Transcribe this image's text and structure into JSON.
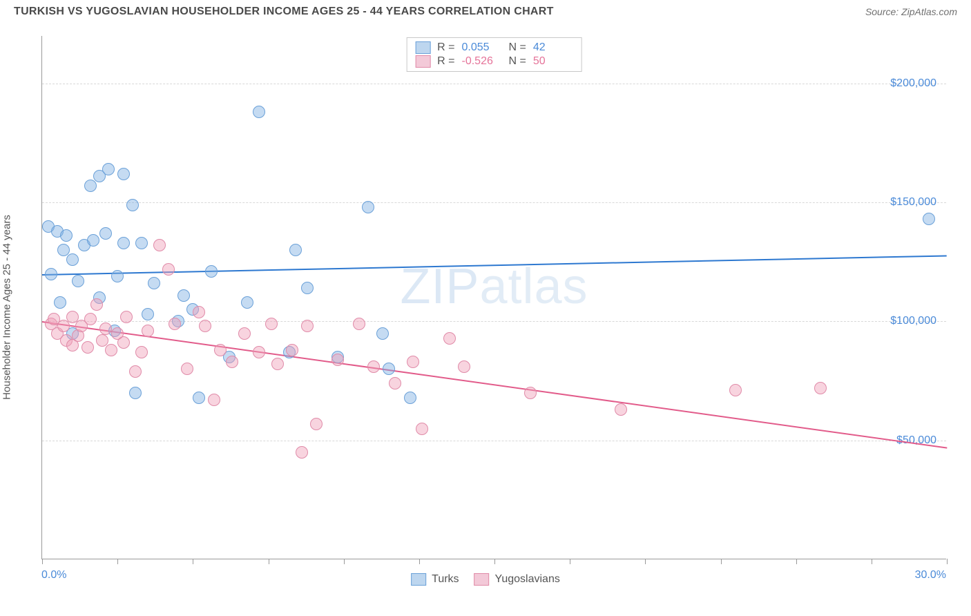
{
  "title": "TURKISH VS YUGOSLAVIAN HOUSEHOLDER INCOME AGES 25 - 44 YEARS CORRELATION CHART",
  "source": "Source: ZipAtlas.com",
  "watermark": "ZIPatlas",
  "y_axis_label": "Householder Income Ages 25 - 44 years",
  "chart": {
    "type": "scatter",
    "xlim": [
      0,
      30
    ],
    "ylim": [
      0,
      220000
    ],
    "x_ticks": [
      0,
      2.5,
      5,
      7.5,
      10,
      12.5,
      15,
      17.5,
      20,
      22.5,
      25,
      27.5,
      30
    ],
    "x_start_label": "0.0%",
    "x_end_label": "30.0%",
    "y_gridlines": [
      {
        "value": 50000,
        "label": "$50,000"
      },
      {
        "value": 100000,
        "label": "$100,000"
      },
      {
        "value": 150000,
        "label": "$150,000"
      },
      {
        "value": 200000,
        "label": "$200,000"
      }
    ],
    "background_color": "#ffffff",
    "grid_color": "#d8d8d8",
    "axis_color": "#999999",
    "tick_label_color": "#4a8ad8",
    "marker_radius": 9,
    "marker_stroke_width": 1.2,
    "series": [
      {
        "name": "Turks",
        "fill_color": "rgba(127,175,226,0.45)",
        "stroke_color": "#6aa0d8",
        "legend_fill": "#bdd6ef",
        "legend_stroke": "#6aa0d8",
        "R": "0.055",
        "N": "42",
        "trend": {
          "y_at_x0": 120000,
          "y_at_xmax": 128000,
          "color": "#2d78d0",
          "width": 2
        },
        "points": [
          [
            0.2,
            140000
          ],
          [
            0.3,
            120000
          ],
          [
            0.5,
            138000
          ],
          [
            0.6,
            108000
          ],
          [
            0.7,
            130000
          ],
          [
            0.8,
            136000
          ],
          [
            1.0,
            126000
          ],
          [
            1.0,
            95000
          ],
          [
            1.2,
            117000
          ],
          [
            1.4,
            132000
          ],
          [
            1.6,
            157000
          ],
          [
            1.7,
            134000
          ],
          [
            1.9,
            110000
          ],
          [
            1.9,
            161000
          ],
          [
            2.1,
            137000
          ],
          [
            2.2,
            164000
          ],
          [
            2.4,
            96000
          ],
          [
            2.5,
            119000
          ],
          [
            2.7,
            133000
          ],
          [
            2.7,
            162000
          ],
          [
            3.0,
            149000
          ],
          [
            3.1,
            70000
          ],
          [
            3.3,
            133000
          ],
          [
            3.5,
            103000
          ],
          [
            3.7,
            116000
          ],
          [
            4.5,
            100000
          ],
          [
            4.7,
            111000
          ],
          [
            5.0,
            105000
          ],
          [
            5.2,
            68000
          ],
          [
            5.6,
            121000
          ],
          [
            6.2,
            85000
          ],
          [
            6.8,
            108000
          ],
          [
            7.2,
            188000
          ],
          [
            8.2,
            87000
          ],
          [
            8.4,
            130000
          ],
          [
            8.8,
            114000
          ],
          [
            9.8,
            85000
          ],
          [
            10.8,
            148000
          ],
          [
            11.3,
            95000
          ],
          [
            11.5,
            80000
          ],
          [
            12.2,
            68000
          ],
          [
            29.4,
            143000
          ]
        ]
      },
      {
        "name": "Yugoslavians",
        "fill_color": "rgba(240,160,185,0.45)",
        "stroke_color": "#e08aa8",
        "legend_fill": "#f3c9d8",
        "legend_stroke": "#e08aa8",
        "R": "-0.526",
        "N": "50",
        "trend": {
          "y_at_x0": 100000,
          "y_at_xmax": 47000,
          "color": "#e25b8a",
          "width": 2
        },
        "points": [
          [
            0.3,
            99000
          ],
          [
            0.4,
            101000
          ],
          [
            0.5,
            95000
          ],
          [
            0.7,
            98000
          ],
          [
            0.8,
            92000
          ],
          [
            1.0,
            102000
          ],
          [
            1.0,
            90000
          ],
          [
            1.2,
            94000
          ],
          [
            1.3,
            98000
          ],
          [
            1.5,
            89000
          ],
          [
            1.6,
            101000
          ],
          [
            1.8,
            107000
          ],
          [
            2.0,
            92000
          ],
          [
            2.1,
            97000
          ],
          [
            2.3,
            88000
          ],
          [
            2.5,
            95000
          ],
          [
            2.7,
            91000
          ],
          [
            2.8,
            102000
          ],
          [
            3.1,
            79000
          ],
          [
            3.3,
            87000
          ],
          [
            3.5,
            96000
          ],
          [
            3.9,
            132000
          ],
          [
            4.2,
            122000
          ],
          [
            4.4,
            99000
          ],
          [
            4.8,
            80000
          ],
          [
            5.2,
            104000
          ],
          [
            5.4,
            98000
          ],
          [
            5.7,
            67000
          ],
          [
            5.9,
            88000
          ],
          [
            6.3,
            83000
          ],
          [
            6.7,
            95000
          ],
          [
            7.2,
            87000
          ],
          [
            7.6,
            99000
          ],
          [
            7.8,
            82000
          ],
          [
            8.3,
            88000
          ],
          [
            8.6,
            45000
          ],
          [
            8.8,
            98000
          ],
          [
            9.1,
            57000
          ],
          [
            9.8,
            84000
          ],
          [
            10.5,
            99000
          ],
          [
            11.0,
            81000
          ],
          [
            11.7,
            74000
          ],
          [
            12.3,
            83000
          ],
          [
            12.6,
            55000
          ],
          [
            13.5,
            93000
          ],
          [
            14.0,
            81000
          ],
          [
            16.2,
            70000
          ],
          [
            19.2,
            63000
          ],
          [
            23.0,
            71000
          ],
          [
            25.8,
            72000
          ]
        ]
      }
    ],
    "legend_bottom": [
      "Turks",
      "Yugoslavians"
    ]
  }
}
